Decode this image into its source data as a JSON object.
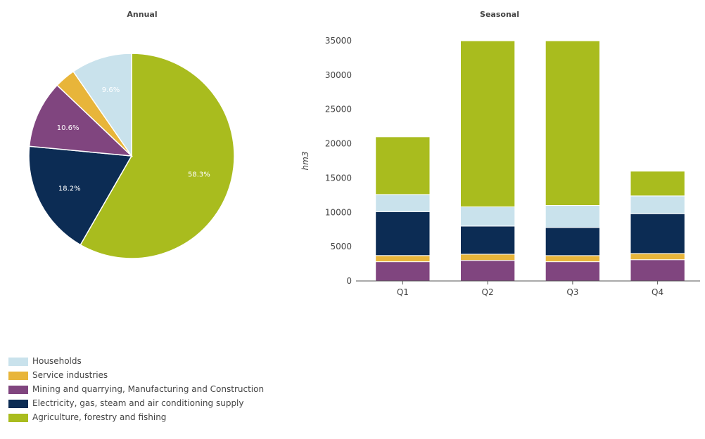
{
  "chart_data": [
    {
      "type": "pie",
      "title": "Annual",
      "slices": [
        {
          "label": "Agriculture, forestry and fishing",
          "value": 58.3,
          "data_label": "58.3%"
        },
        {
          "label": "Electricity, gas, steam and air conditioning supply",
          "value": 18.2,
          "data_label": "18.2%"
        },
        {
          "label": "Mining and quarrying, Manufacturing and Construction",
          "value": 10.6,
          "data_label": "10.6%"
        },
        {
          "label": "Service industries",
          "value": 3.3,
          "data_label": ""
        },
        {
          "label": "Households",
          "value": 9.6,
          "data_label": "9.6%"
        }
      ]
    },
    {
      "type": "bar",
      "stacked": true,
      "title": "Seasonal",
      "xlabel": "",
      "ylabel": "hm3",
      "ylim": [
        0,
        35000
      ],
      "yticks": [
        "0",
        "5000",
        "10000",
        "15000",
        "20000",
        "25000",
        "30000",
        "35000"
      ],
      "categories": [
        "Q1",
        "Q2",
        "Q3",
        "Q4"
      ],
      "series": [
        {
          "name": "Mining and quarrying, Manufacturing and Construction",
          "values": [
            2800,
            3000,
            2800,
            3100
          ]
        },
        {
          "name": "Service industries",
          "values": [
            900,
            900,
            900,
            900
          ]
        },
        {
          "name": "Electricity, gas, steam and air conditioning supply",
          "values": [
            6400,
            4100,
            4100,
            5800
          ]
        },
        {
          "name": "Households",
          "values": [
            2500,
            2800,
            3200,
            2600
          ]
        },
        {
          "name": "Agriculture, forestry and fishing",
          "values": [
            8400,
            24200,
            24000,
            3600
          ]
        }
      ]
    }
  ],
  "legend": [
    {
      "label": "Households",
      "color": "#c9e2ec"
    },
    {
      "label": "Service industries",
      "color": "#e8b53a"
    },
    {
      "label": "Mining and quarrying, Manufacturing and Construction",
      "color": "#80457f"
    },
    {
      "label": "Electricity, gas, steam and air conditioning supply",
      "color": "#0c2c54"
    },
    {
      "label": "Agriculture, forestry and fishing",
      "color": "#a9bc1e"
    }
  ]
}
